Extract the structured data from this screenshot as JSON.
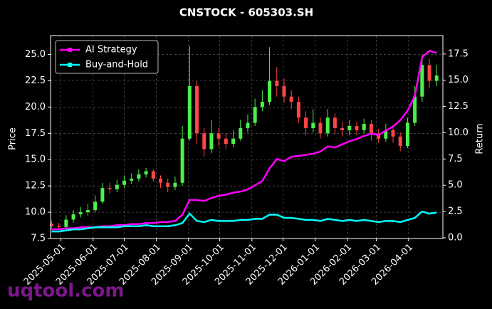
{
  "chart_data": {
    "type": "candlestick",
    "title": "CNSTOCK - 605303.SH",
    "ylabel": "Price",
    "y2label": "Return",
    "watermark": "uqtool.com",
    "x": [
      "2025-04-22",
      "2025-04-29",
      "2025-05-06",
      "2025-05-13",
      "2025-05-20",
      "2025-05-27",
      "2025-06-03",
      "2025-06-10",
      "2025-06-17",
      "2025-06-24",
      "2025-07-01",
      "2025-07-08",
      "2025-07-15",
      "2025-07-22",
      "2025-07-29",
      "2025-08-05",
      "2025-08-12",
      "2025-08-19",
      "2025-08-26",
      "2025-09-02",
      "2025-09-09",
      "2025-09-16",
      "2025-09-23",
      "2025-09-30",
      "2025-10-07",
      "2025-10-14",
      "2025-10-21",
      "2025-10-28",
      "2025-11-04",
      "2025-11-11",
      "2025-11-18",
      "2025-11-25",
      "2025-12-02",
      "2025-12-09",
      "2025-12-16",
      "2025-12-23",
      "2025-12-30",
      "2026-01-06",
      "2026-01-13",
      "2026-01-20",
      "2026-01-27",
      "2026-02-03",
      "2026-02-10",
      "2026-02-17",
      "2026-02-24",
      "2026-03-03",
      "2026-03-10",
      "2026-03-17",
      "2026-03-24",
      "2026-03-31",
      "2026-04-07",
      "2026-04-14",
      "2026-04-21",
      "2026-04-28"
    ],
    "open": [
      8.9,
      8.7,
      8.6,
      9.3,
      9.8,
      10.0,
      10.2,
      11.0,
      12.3,
      12.2,
      12.6,
      13.0,
      13.2,
      13.6,
      13.9,
      13.2,
      12.8,
      12.4,
      12.8,
      17.0,
      22.0,
      17.5,
      16.0,
      17.5,
      17.0,
      16.5,
      17.0,
      18.0,
      18.5,
      20.0,
      20.5,
      22.5,
      22.0,
      21.0,
      20.5,
      19.0,
      18.0,
      18.5,
      17.5,
      19.0,
      18.0,
      17.8,
      18.2,
      17.8,
      18.4,
      17.5,
      17.0,
      17.8,
      17.2,
      16.3,
      18.5,
      21.0,
      24.0,
      22.5
    ],
    "high": [
      9.2,
      9.0,
      9.7,
      10.2,
      10.5,
      10.8,
      11.6,
      12.8,
      12.8,
      13.1,
      13.5,
      13.7,
      14.1,
      14.2,
      14.1,
      13.5,
      13.2,
      13.4,
      18.2,
      25.8,
      22.5,
      18.0,
      18.8,
      18.0,
      17.5,
      17.8,
      18.8,
      19.3,
      20.8,
      21.6,
      25.7,
      23.8,
      22.7,
      21.6,
      21.0,
      19.6,
      19.8,
      19.0,
      19.8,
      19.4,
      18.6,
      18.8,
      18.6,
      18.9,
      18.8,
      17.9,
      18.4,
      18.2,
      17.6,
      19.0,
      22.0,
      25.0,
      24.6,
      24.0
    ],
    "low": [
      8.4,
      8.3,
      8.4,
      9.0,
      9.5,
      9.7,
      10.0,
      10.8,
      11.8,
      11.9,
      12.3,
      12.7,
      12.9,
      13.3,
      12.9,
      12.3,
      11.9,
      12.1,
      12.5,
      16.8,
      16.5,
      15.3,
      15.6,
      16.3,
      16.0,
      16.2,
      16.8,
      17.6,
      18.2,
      19.6,
      20.2,
      21.0,
      20.4,
      19.8,
      18.5,
      17.3,
      17.6,
      17.0,
      17.2,
      17.4,
      17.2,
      17.3,
      17.3,
      17.5,
      16.8,
      16.6,
      16.7,
      16.6,
      15.8,
      16.1,
      18.2,
      20.5,
      21.8,
      22.0
    ],
    "close": [
      8.7,
      8.6,
      9.3,
      9.8,
      10.0,
      10.2,
      11.0,
      12.3,
      12.2,
      12.6,
      13.0,
      13.2,
      13.6,
      13.9,
      13.2,
      12.8,
      12.4,
      12.8,
      17.0,
      22.0,
      17.5,
      16.0,
      17.5,
      17.0,
      16.5,
      17.0,
      18.0,
      18.5,
      20.0,
      20.5,
      22.5,
      22.0,
      21.0,
      20.5,
      19.0,
      18.0,
      18.5,
      17.5,
      19.0,
      18.0,
      17.8,
      18.2,
      17.8,
      18.4,
      17.5,
      17.0,
      17.8,
      17.2,
      16.3,
      18.5,
      21.0,
      24.0,
      22.5,
      23.0
    ],
    "up_color": "#4cf04c",
    "down_color": "#ff4545",
    "series": [
      {
        "name": "AI Strategy",
        "color": "#ff00ff",
        "axis": "y2",
        "values": [
          0.8,
          0.8,
          0.9,
          0.9,
          1.0,
          1.0,
          1.0,
          1.1,
          1.1,
          1.2,
          1.2,
          1.3,
          1.3,
          1.4,
          1.4,
          1.5,
          1.5,
          1.6,
          2.2,
          3.6,
          3.6,
          3.5,
          3.8,
          4.0,
          4.1,
          4.3,
          4.4,
          4.6,
          5.0,
          5.4,
          6.6,
          7.5,
          7.3,
          7.7,
          7.8,
          7.9,
          8.0,
          8.2,
          8.7,
          8.6,
          8.9,
          9.2,
          9.4,
          9.7,
          9.9,
          9.8,
          10.2,
          10.6,
          11.2,
          12.1,
          13.5,
          17.2,
          17.8,
          17.6
        ]
      },
      {
        "name": "Buy-and-Hold",
        "color": "#00ffff",
        "axis": "y2",
        "values": [
          0.6,
          0.6,
          0.7,
          0.8,
          0.8,
          0.9,
          1.0,
          1.0,
          1.0,
          1.0,
          1.1,
          1.1,
          1.1,
          1.2,
          1.1,
          1.1,
          1.1,
          1.2,
          1.4,
          2.3,
          1.6,
          1.5,
          1.7,
          1.6,
          1.6,
          1.6,
          1.7,
          1.7,
          1.8,
          1.8,
          2.2,
          2.2,
          1.9,
          1.9,
          1.8,
          1.7,
          1.7,
          1.6,
          1.8,
          1.7,
          1.6,
          1.7,
          1.6,
          1.7,
          1.6,
          1.5,
          1.6,
          1.6,
          1.5,
          1.7,
          1.9,
          2.5,
          2.3,
          2.4
        ]
      }
    ],
    "xlim": [
      "2025-04-21",
      "2026-05-04"
    ],
    "xticks": [
      "2025-05-01",
      "2025-06-01",
      "2025-07-01",
      "2025-08-01",
      "2025-09-01",
      "2025-10-01",
      "2025-11-01",
      "2025-12-01",
      "2026-01-01",
      "2026-02-01",
      "2026-03-01",
      "2026-04-01"
    ],
    "ylim": [
      7.5,
      26.8
    ],
    "yticks": [
      7.5,
      {
        "value": 10,
        "label": "10.0"
      },
      12.5,
      {
        "value": 15,
        "label": "15.0"
      },
      17.5,
      {
        "value": 20,
        "label": "20.0"
      },
      22.5,
      {
        "value": 25,
        "label": "25.0"
      }
    ],
    "y2lim": [
      -0.07,
      19.25
    ],
    "y2ticks": [
      {
        "value": 0,
        "label": "0.0"
      },
      2.5,
      {
        "value": 5,
        "label": "5.0"
      },
      7.5,
      {
        "value": 10,
        "label": "10.0"
      },
      12.5,
      {
        "value": 15,
        "label": "15.0"
      },
      17.5
    ],
    "grid": true,
    "legend": "upper left"
  }
}
